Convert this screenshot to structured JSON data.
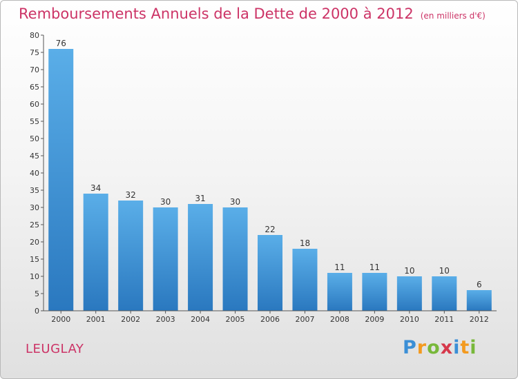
{
  "title": "Remboursements Annuels de la Dette de 2000 à 2012",
  "unit_note": "(en milliers d'€)",
  "place_name": "LEUGLAY",
  "logo_text": "Proxiti",
  "colors": {
    "title": "#cc3366",
    "bar_light": "#5aaee8",
    "bar_dark": "#2a78bf",
    "axis": "#555555"
  },
  "chart_data": {
    "type": "bar",
    "categories": [
      "2000",
      "2001",
      "2002",
      "2003",
      "2004",
      "2005",
      "2006",
      "2007",
      "2008",
      "2009",
      "2010",
      "2011",
      "2012"
    ],
    "values": [
      76,
      34,
      32,
      30,
      31,
      30,
      22,
      18,
      11,
      11,
      10,
      10,
      6
    ],
    "data_labels": [
      "76",
      "34",
      "32",
      "30",
      "31",
      "30",
      "22",
      "18",
      "11",
      "11",
      "10",
      "10",
      "6"
    ],
    "ylim": [
      0,
      80
    ],
    "yticks": [
      0,
      5,
      10,
      15,
      20,
      25,
      30,
      35,
      40,
      45,
      50,
      55,
      60,
      65,
      70,
      75,
      80
    ],
    "grid": false,
    "xlabel": "",
    "ylabel": ""
  }
}
